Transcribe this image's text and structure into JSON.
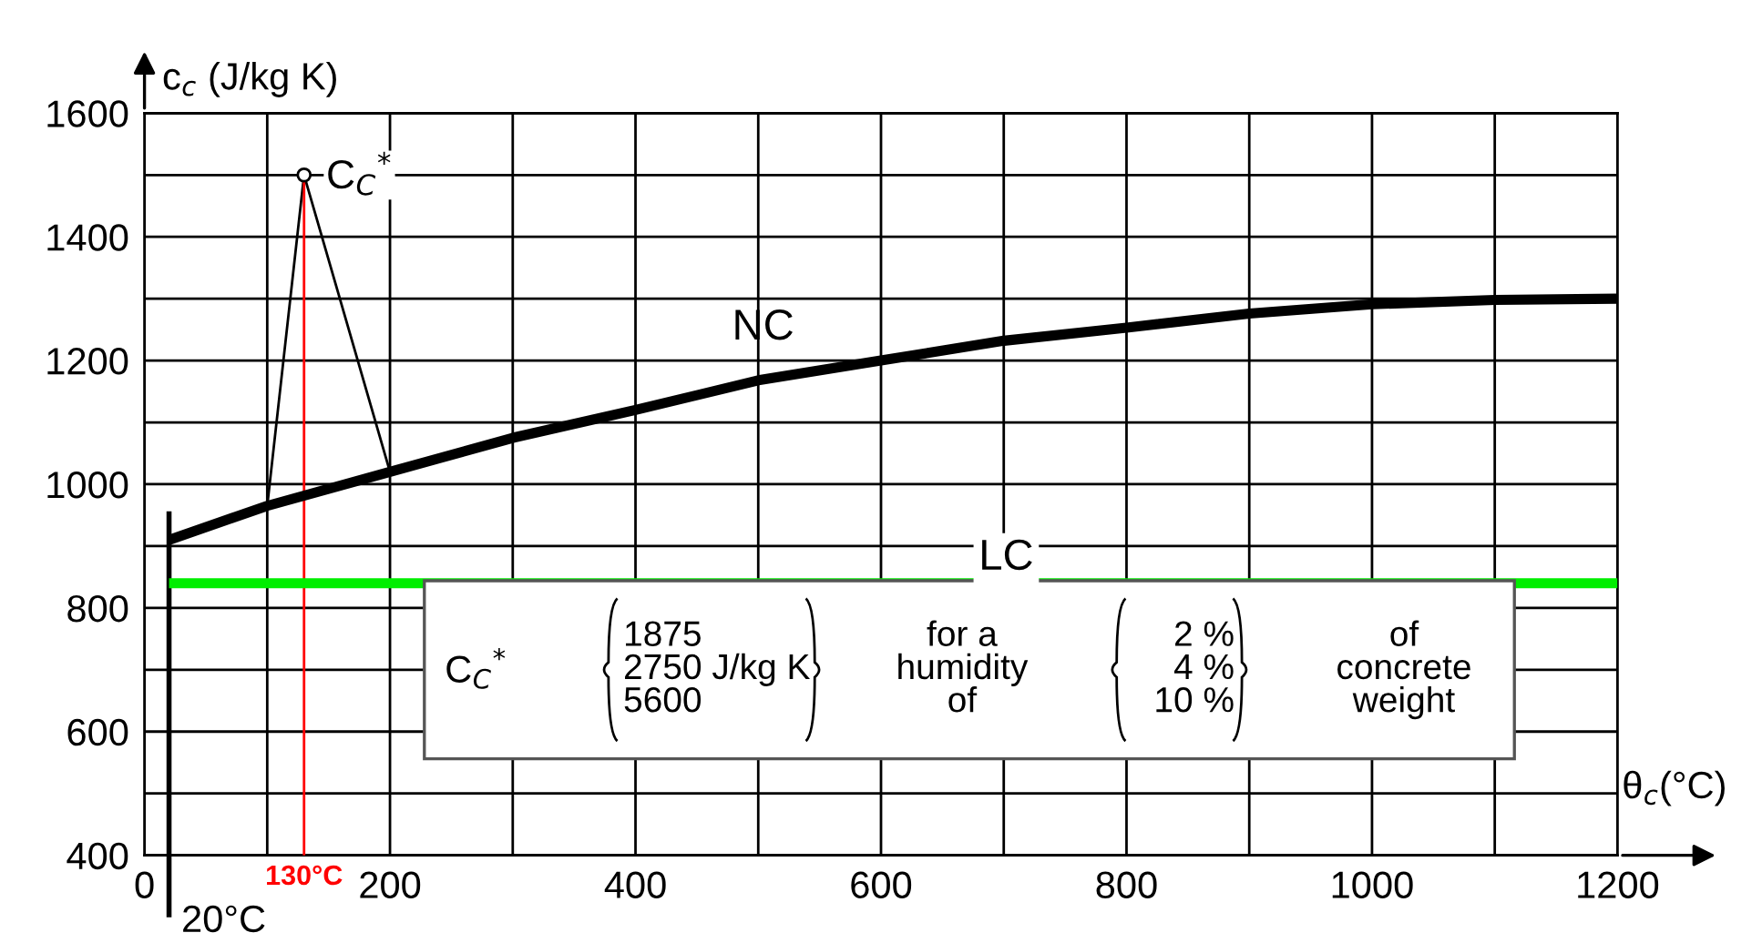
{
  "chart_data": {
    "type": "line",
    "xlabel": "θ$_{c}$(°C)",
    "ylabel": "c$_{c}$ (J/kg K)",
    "xlim": [
      0,
      1200
    ],
    "ylim": [
      400,
      1600
    ],
    "xticks": [
      0,
      {
        "value": 100,
        "label": null
      },
      200,
      {
        "value": 300,
        "label": null
      },
      400,
      {
        "value": 500,
        "label": null
      },
      600,
      {
        "value": 700,
        "label": null
      },
      800,
      {
        "value": 900,
        "label": null
      },
      1000,
      {
        "value": 1100,
        "label": null
      },
      1200
    ],
    "yticks": [
      400,
      {
        "value": 500,
        "label": null
      },
      600,
      {
        "value": 700,
        "label": null
      },
      800,
      {
        "value": 900,
        "label": null
      },
      1000,
      {
        "value": 1100,
        "label": null
      },
      1200,
      {
        "value": 1300,
        "label": null
      },
      1400,
      {
        "value": 1500,
        "label": null
      },
      1600
    ],
    "grid": true,
    "legend": false,
    "marker": "none",
    "line_style": "solid",
    "series": [
      {
        "name": "NC",
        "color": "#000000",
        "x": [
          20,
          100,
          200,
          300,
          400,
          500,
          600,
          700,
          800,
          900,
          1000,
          1100,
          1200
        ],
        "values": [
          910,
          965,
          1020,
          1075,
          1120,
          1168,
          1200,
          1232,
          1253,
          1276,
          1291,
          1298,
          1300
        ]
      },
      {
        "name": "LC",
        "color": "#00ee00",
        "x": [
          20,
          1200
        ],
        "values": [
          840,
          840
        ]
      },
      {
        "color": "#000000",
        "x": [
          100,
          130,
          200
        ],
        "values": [
          965,
          1500,
          1020
        ]
      }
    ],
    "ref_lines": [
      {
        "axis": "x",
        "value": 20,
        "label": "20°C",
        "color": "#000000"
      },
      {
        "axis": "x",
        "value": 130,
        "label": "130°C",
        "color": "#ff0000"
      }
    ],
    "annotations": [
      {
        "text": "C$_{C}$$^{*}$",
        "x": 130,
        "y": 1500
      },
      "C$_{C}$$^{*}$",
      "1875\n2750 J/kg K\n5600",
      "for a\nhumidity\nof",
      "2 %\n4 %\n10 %",
      "of\nconcrete\nweight"
    ]
  }
}
